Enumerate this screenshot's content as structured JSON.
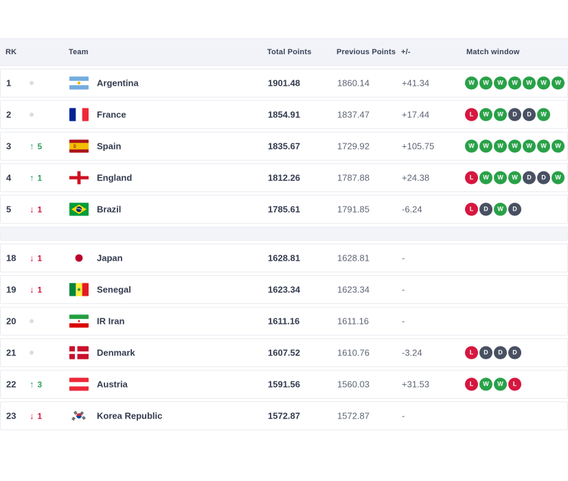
{
  "colors": {
    "win": "#29a148",
    "draw": "#485062",
    "loss": "#d6173f",
    "rank_up": "#30a05e",
    "rank_down": "#d6173f",
    "rank_same_dot": "#dbdce1",
    "header_bg": "#f1f3f8",
    "text_dark": "#333b4f",
    "text_gray": "#5c6474"
  },
  "table": {
    "header": {
      "rk": "RK",
      "team": "Team",
      "total_points": "Total Points",
      "previous_points": "Previous Points",
      "plus_minus": "+/-",
      "match_window": "Match window"
    },
    "rows": [
      {
        "rank": "1",
        "trend": "same",
        "trend_value": "",
        "team": "Argentina",
        "flag": "argentina-flag",
        "total": "1901.48",
        "previous": "1860.14",
        "diff": "+41.34",
        "matches": [
          "W",
          "W",
          "W",
          "W",
          "W",
          "W",
          "W"
        ],
        "separator_before": false
      },
      {
        "rank": "2",
        "trend": "same",
        "trend_value": "",
        "team": "France",
        "flag": "france-flag",
        "total": "1854.91",
        "previous": "1837.47",
        "diff": "+17.44",
        "matches": [
          "L",
          "W",
          "W",
          "D",
          "D",
          "W"
        ],
        "separator_before": false
      },
      {
        "rank": "3",
        "trend": "up",
        "trend_value": "5",
        "team": "Spain",
        "flag": "spain-flag",
        "total": "1835.67",
        "previous": "1729.92",
        "diff": "+105.75",
        "matches": [
          "W",
          "W",
          "W",
          "W",
          "W",
          "W",
          "W"
        ],
        "separator_before": false
      },
      {
        "rank": "4",
        "trend": "up",
        "trend_value": "1",
        "team": "England",
        "flag": "england-flag",
        "total": "1812.26",
        "previous": "1787.88",
        "diff": "+24.38",
        "matches": [
          "L",
          "W",
          "W",
          "W",
          "D",
          "D",
          "W"
        ],
        "separator_before": false
      },
      {
        "rank": "5",
        "trend": "down",
        "trend_value": "1",
        "team": "Brazil",
        "flag": "brazil-flag",
        "total": "1785.61",
        "previous": "1791.85",
        "diff": "-6.24",
        "matches": [
          "L",
          "D",
          "W",
          "D"
        ],
        "separator_before": false
      },
      {
        "rank": "18",
        "trend": "down",
        "trend_value": "1",
        "team": "Japan",
        "flag": "japan-flag",
        "total": "1628.81",
        "previous": "1628.81",
        "diff": "-",
        "matches": [],
        "separator_before": true
      },
      {
        "rank": "19",
        "trend": "down",
        "trend_value": "1",
        "team": "Senegal",
        "flag": "senegal-flag",
        "total": "1623.34",
        "previous": "1623.34",
        "diff": "-",
        "matches": [],
        "separator_before": false
      },
      {
        "rank": "20",
        "trend": "same",
        "trend_value": "",
        "team": "IR Iran",
        "flag": "iran-flag",
        "total": "1611.16",
        "previous": "1611.16",
        "diff": "-",
        "matches": [],
        "separator_before": false
      },
      {
        "rank": "21",
        "trend": "same",
        "trend_value": "",
        "team": "Denmark",
        "flag": "denmark-flag",
        "total": "1607.52",
        "previous": "1610.76",
        "diff": "-3.24",
        "matches": [
          "L",
          "D",
          "D",
          "D"
        ],
        "separator_before": false
      },
      {
        "rank": "22",
        "trend": "up",
        "trend_value": "3",
        "team": "Austria",
        "flag": "austria-flag",
        "total": "1591.56",
        "previous": "1560.03",
        "diff": "+31.53",
        "matches": [
          "L",
          "W",
          "W",
          "L"
        ],
        "separator_before": false
      },
      {
        "rank": "23",
        "trend": "down",
        "trend_value": "1",
        "team": "Korea Republic",
        "flag": "korea-republic-flag",
        "total": "1572.87",
        "previous": "1572.87",
        "diff": "-",
        "matches": [],
        "separator_before": false
      }
    ]
  }
}
